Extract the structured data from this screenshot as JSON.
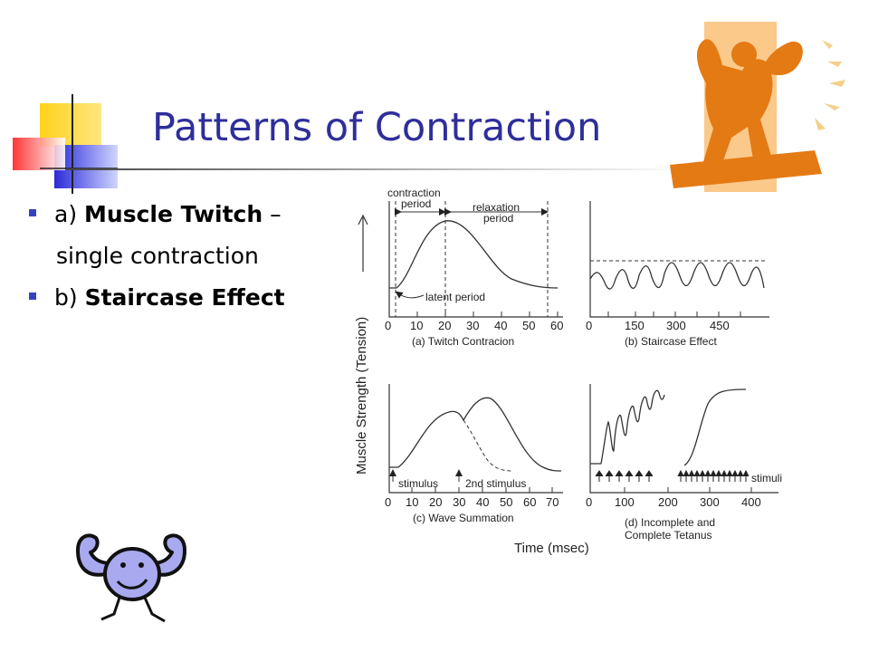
{
  "slide": {
    "title": "Patterns of Contraction",
    "bullets": [
      {
        "prefix": "a) ",
        "bold": "Muscle Twitch",
        "suffix": " –",
        "continuation": "single contraction"
      },
      {
        "prefix": "b) ",
        "bold": "Staircase Effect",
        "suffix": ""
      }
    ]
  },
  "figure": {
    "y_axis_label": "Muscle Strength (Tension)",
    "x_axis_label": "Time (msec)",
    "panel_a": {
      "caption": "(a) Twitch Contracion",
      "ticks": [
        "0",
        "10",
        "20",
        "30",
        "40",
        "50",
        "60"
      ],
      "contraction_label": [
        "contraction",
        "period"
      ],
      "relaxation_label": [
        "relaxation",
        "period"
      ],
      "latent_label": "latent period"
    },
    "panel_b": {
      "caption": "(b) Staircase Effect",
      "ticks": [
        "0",
        "150",
        "300",
        "450"
      ]
    },
    "panel_c": {
      "caption": "(c) Wave Summation",
      "ticks": [
        "0",
        "10",
        "20",
        "30",
        "40",
        "50",
        "60",
        "70"
      ],
      "stimulus_label": "stimulus",
      "second_stimulus_label": "2nd stimulus"
    },
    "panel_d": {
      "caption_line1": "(d) Incomplete and",
      "caption_line2": "Complete Tetanus",
      "ticks": [
        "0",
        "100",
        "200",
        "300",
        "400"
      ],
      "stimuli_label": "stimuli"
    }
  },
  "colors": {
    "title": "#2e2e9a",
    "bullet": "#3344bb",
    "strongman": "#e47a14",
    "strongman_bg": "#fbc98a",
    "cartoon": "#a9a9ef"
  },
  "decor": {
    "top_left": "colored-squares-decoration",
    "top_right": "strongman-clipart",
    "bottom_left": "flexing-cartoon-clipart"
  }
}
